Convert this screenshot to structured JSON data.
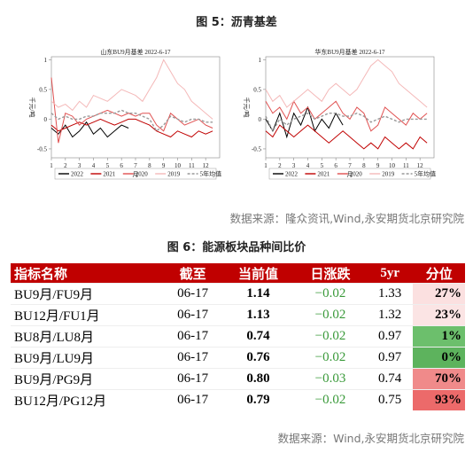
{
  "figure5": {
    "title": "图 5：沥青基差"
  },
  "chart_data": [
    {
      "type": "line",
      "title": "山东BU9月基差 2022-6-17",
      "y_label": "千元/吨",
      "x_label": "月",
      "x": [
        1,
        1.5,
        2,
        2.5,
        3,
        3.5,
        4,
        4.5,
        5,
        5.5,
        6,
        6.5,
        7,
        7.5,
        8,
        8.5,
        9,
        9.5,
        10,
        10.5,
        11,
        11.5,
        12,
        12.5
      ],
      "xlim": [
        1,
        13
      ],
      "xticks": [
        1,
        2,
        3,
        4,
        5,
        6,
        7,
        8,
        9,
        10,
        11,
        12
      ],
      "ylim": [
        -0.65,
        1.05
      ],
      "yticks": [
        1,
        0.5,
        0,
        -0.5
      ],
      "series": [
        {
          "name": "2022",
          "color": "#000000",
          "values": [
            -0.15,
            -0.25,
            -0.1,
            -0.3,
            -0.2,
            -0.05,
            -0.25,
            -0.15,
            -0.3,
            -0.2,
            -0.1,
            -0.15,
            null,
            null,
            null,
            null,
            null,
            null,
            null,
            null,
            null,
            null,
            null,
            null
          ]
        },
        {
          "name": "2021",
          "color": "#c00000",
          "values": [
            -0.1,
            -0.2,
            -0.15,
            -0.1,
            -0.05,
            -0.1,
            -0.05,
            0,
            -0.05,
            -0.1,
            -0.05,
            0,
            0,
            -0.05,
            -0.1,
            -0.2,
            -0.25,
            -0.3,
            -0.2,
            -0.25,
            -0.3,
            -0.2,
            -0.25,
            -0.2
          ]
        },
        {
          "name": "2020",
          "color": "#e05050",
          "values": [
            0.7,
            -0.4,
            0.1,
            0.05,
            -0.1,
            0,
            0.05,
            0.1,
            0.15,
            0.1,
            0.05,
            0.1,
            0.05,
            0.1,
            0.1,
            -0.1,
            -0.2,
            0.1,
            0,
            -0.1,
            -0.05,
            0,
            -0.1,
            -0.15
          ]
        },
        {
          "name": "2019",
          "color": "#f4b8b8",
          "values": [
            0.3,
            0.2,
            0.25,
            0.15,
            0.3,
            0.2,
            0.4,
            0.35,
            0.3,
            0.4,
            0.5,
            0.45,
            0.4,
            0.3,
            0.5,
            0.7,
            1.0,
            0.8,
            0.6,
            0.5,
            0.3,
            0.2,
            0.1,
            0.0
          ]
        },
        {
          "name": "5年均值",
          "color": "#999999",
          "dashed": true,
          "values": [
            0.1,
            0.0,
            0.05,
            0.0,
            0.0,
            0.05,
            0.05,
            0.1,
            0.1,
            0.1,
            0.15,
            0.1,
            0.1,
            0.05,
            0.0,
            -0.2,
            -0.1,
            0.05,
            0.0,
            -0.05,
            0.0,
            0.0,
            -0.05,
            -0.05
          ]
        }
      ]
    },
    {
      "type": "line",
      "title": "华东BU9月基差 2022-6-17",
      "y_label": "千元/吨",
      "x_label": "月",
      "x": [
        1,
        1.5,
        2,
        2.5,
        3,
        3.5,
        4,
        4.5,
        5,
        5.5,
        6,
        6.5,
        7,
        7.5,
        8,
        8.5,
        9,
        9.5,
        10,
        10.5,
        11,
        11.5,
        12,
        12.5
      ],
      "xlim": [
        1,
        13
      ],
      "xticks": [
        1,
        2,
        3,
        4,
        5,
        6,
        7,
        8,
        9,
        10,
        11,
        12
      ],
      "ylim": [
        -0.65,
        1.05
      ],
      "yticks": [
        1,
        0.5,
        0,
        -0.5
      ],
      "series": [
        {
          "name": "2022",
          "color": "#000000",
          "values": [
            0,
            -0.2,
            0.1,
            -0.3,
            0.1,
            -0.1,
            0.2,
            -0.2,
            0,
            -0.15,
            0.1,
            -0.1,
            null,
            null,
            null,
            null,
            null,
            null,
            null,
            null,
            null,
            null,
            null,
            null
          ]
        },
        {
          "name": "2021",
          "color": "#c00000",
          "values": [
            -0.2,
            -0.3,
            -0.1,
            -0.2,
            -0.3,
            -0.2,
            -0.1,
            -0.2,
            -0.3,
            -0.4,
            -0.3,
            -0.2,
            -0.3,
            -0.4,
            -0.5,
            -0.4,
            -0.5,
            -0.3,
            -0.4,
            -0.5,
            -0.4,
            -0.5,
            -0.3,
            -0.4
          ]
        },
        {
          "name": "2020",
          "color": "#e05050",
          "values": [
            0.3,
            0.1,
            0.2,
            0.0,
            0.3,
            0.1,
            0.2,
            0.0,
            0.1,
            0.2,
            0.3,
            0.1,
            0.0,
            0.2,
            0.1,
            -0.2,
            -0.1,
            0.2,
            0.1,
            0.0,
            -0.1,
            0.1,
            0.0,
            0.1
          ]
        },
        {
          "name": "2019",
          "color": "#f4b8b8",
          "values": [
            0.5,
            0.3,
            0.4,
            0.2,
            0.3,
            0.4,
            0.5,
            0.4,
            0.3,
            0.5,
            0.6,
            0.5,
            0.4,
            0.5,
            0.7,
            0.9,
            1.0,
            0.9,
            0.8,
            0.6,
            0.5,
            0.4,
            0.3,
            0.2
          ]
        },
        {
          "name": "5年均值",
          "color": "#999999",
          "dashed": true,
          "values": [
            0.05,
            -0.2,
            0,
            -0.1,
            0,
            0.05,
            0.1,
            0,
            0.05,
            0.1,
            0.1,
            0.05,
            0.05,
            0.1,
            0.05,
            -0.05,
            0,
            0.05,
            0,
            -0.05,
            0,
            0,
            0,
            0
          ]
        }
      ]
    }
  ],
  "source1": "数据来源：隆众资讯,Wind,永安期货北京研究院",
  "figure6": {
    "title": "图 6：能源板块品种间比价"
  },
  "table": {
    "header": [
      "指标名称",
      "截至",
      "当前值",
      "日涨跌",
      "5yr",
      "分位"
    ],
    "rows": [
      [
        "BU9月/FU9月",
        "06-17",
        "1.14",
        "−0.02",
        "1.33",
        "27%"
      ],
      [
        "BU12月/FU1月",
        "06-17",
        "1.13",
        "−0.02",
        "1.32",
        "23%"
      ],
      [
        "BU8月/LU8月",
        "06-17",
        "0.74",
        "−0.02",
        "0.97",
        "1%"
      ],
      [
        "BU9月/LU9月",
        "06-17",
        "0.76",
        "−0.02",
        "0.97",
        "0%"
      ],
      [
        "BU9月/PG9月",
        "06-17",
        "0.80",
        "−0.03",
        "0.74",
        "70%"
      ],
      [
        "BU12月/PG12月",
        "06-17",
        "0.79",
        "−0.02",
        "0.75",
        "93%"
      ]
    ],
    "percentile_fills": [
      "#fbe0e0",
      "#fbe4e4",
      "#6cbf6c",
      "#5db35d",
      "#f08a8a",
      "#ec6a6a"
    ]
  },
  "source2": "数据来源：Wind,永安期货北京研究院"
}
